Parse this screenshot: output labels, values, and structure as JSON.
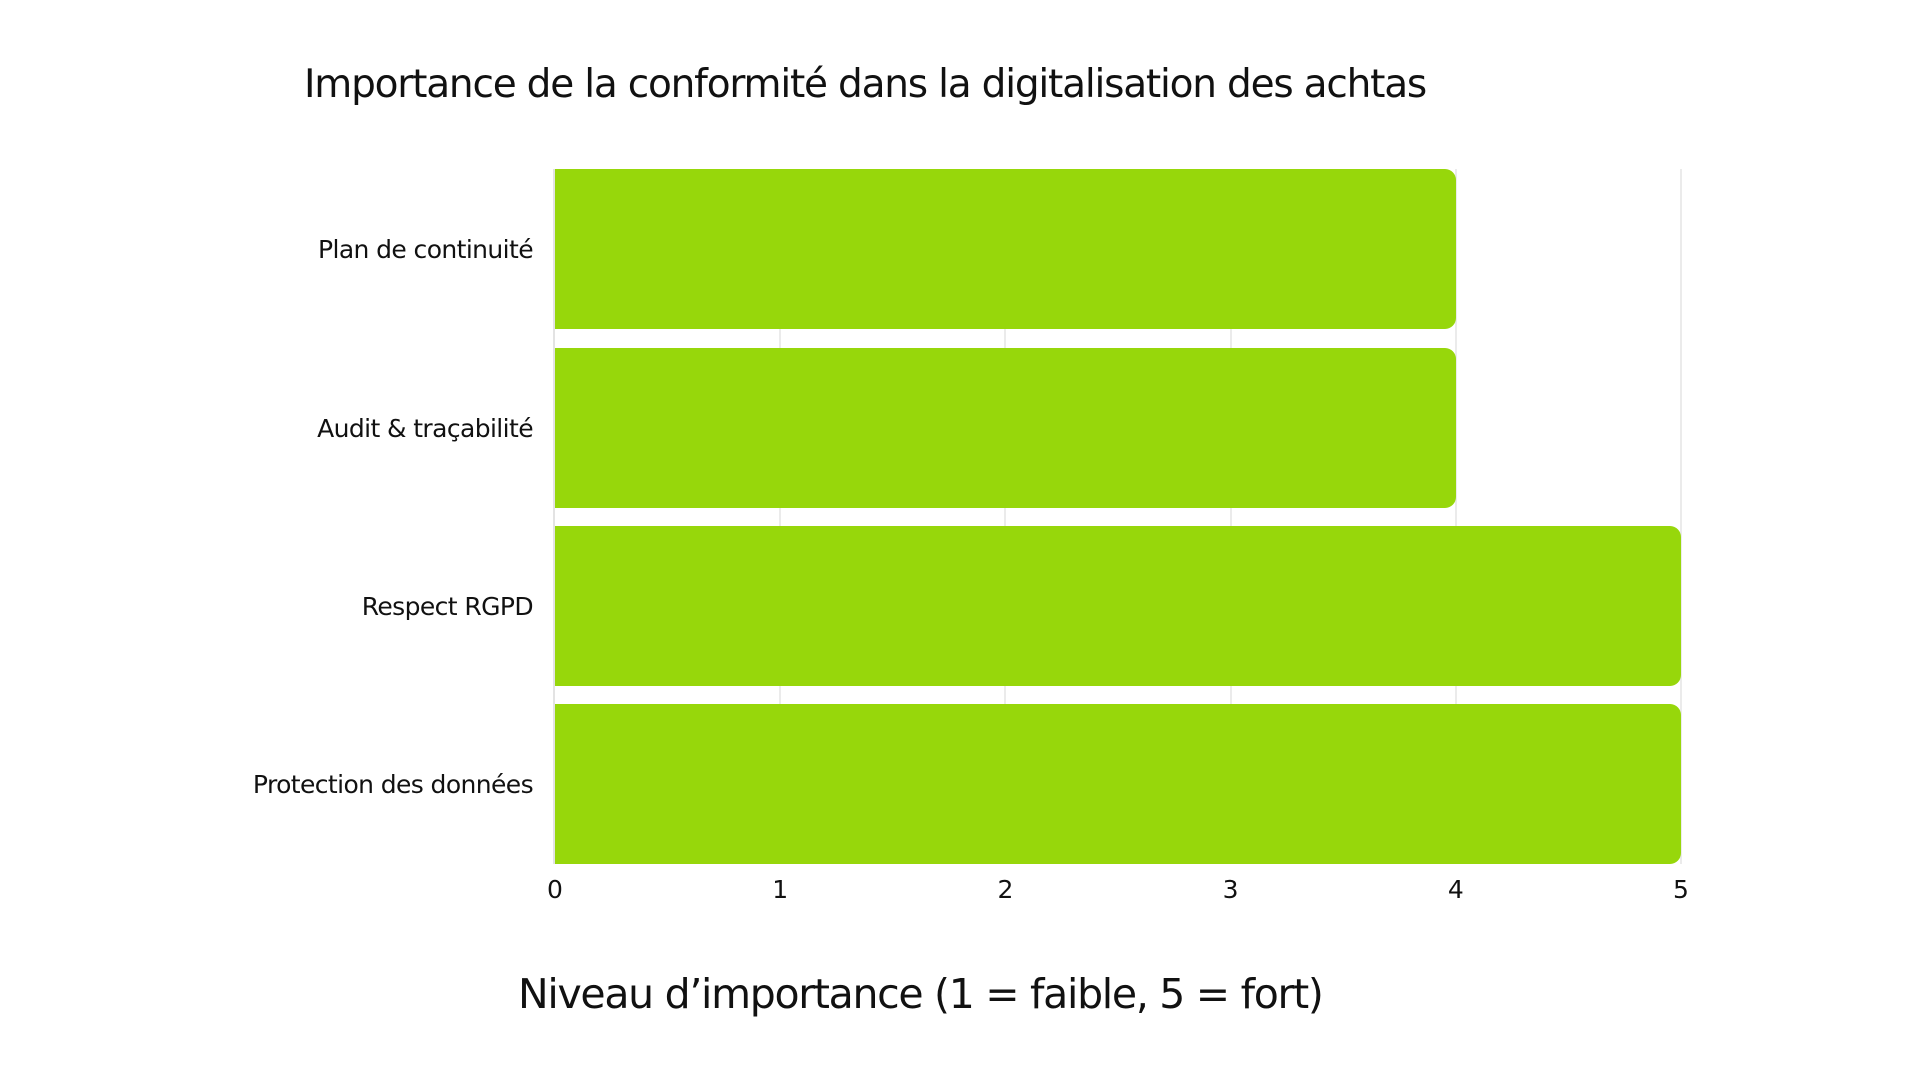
{
  "chart": {
    "title": "Importance de la conformité dans la digitalisation des achtas",
    "x_axis_title": "Niveau d’importance (1 = faible, 5 = fort)",
    "bar_color": "#97d70b",
    "gridline_color": "#ebebeb",
    "ticks": [
      "0",
      "1",
      "2",
      "3",
      "4",
      "5"
    ],
    "categories": [
      {
        "label": "Plan de continuité",
        "value": 4
      },
      {
        "label": "Audit & traçabilité",
        "value": 4
      },
      {
        "label": "Respect RGPD",
        "value": 5
      },
      {
        "label": "Protection des données",
        "value": 5
      }
    ]
  },
  "chart_data": {
    "type": "bar",
    "orientation": "horizontal",
    "title": "Importance de la conformité dans la digitalisation des achtas",
    "xlabel": "Niveau d’importance (1 = faible, 5 = fort)",
    "ylabel": "",
    "categories": [
      "Plan de continuité",
      "Audit & traçabilité",
      "Respect RGPD",
      "Protection des données"
    ],
    "values": [
      4,
      4,
      5,
      5
    ],
    "xlim": [
      0,
      5
    ],
    "x_ticks": [
      0,
      1,
      2,
      3,
      4,
      5
    ],
    "grid": true,
    "legend": null,
    "color": "#97d70b"
  }
}
